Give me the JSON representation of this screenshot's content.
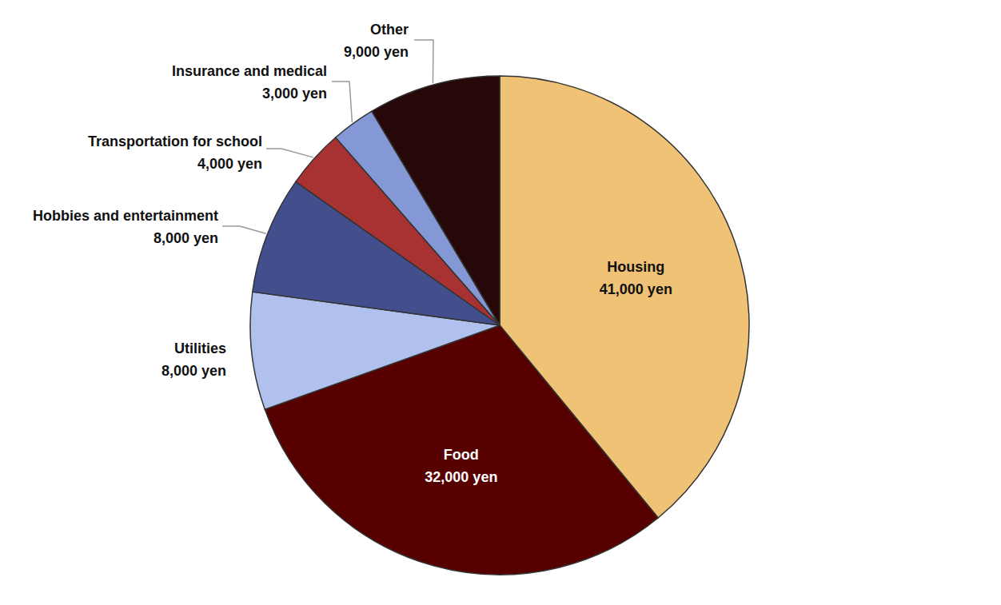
{
  "chart_data": {
    "type": "pie",
    "categories": [
      "Housing",
      "Food",
      "Utilities",
      "Hobbies and entertainment",
      "Transportation for school",
      "Insurance and medical",
      "Other"
    ],
    "values": [
      41000,
      32000,
      8000,
      8000,
      4000,
      3000,
      9000
    ],
    "value_labels": [
      "41,000 yen",
      "32,000 yen",
      "8,000 yen",
      "8,000 yen",
      "4,000 yen",
      "3,000 yen",
      "9,000 yen"
    ],
    "colors": [
      "#f0c276",
      "#560000",
      "#b0c1ee",
      "#424f8c",
      "#a83232",
      "#8598d6",
      "#260808"
    ],
    "data_labels": true
  }
}
